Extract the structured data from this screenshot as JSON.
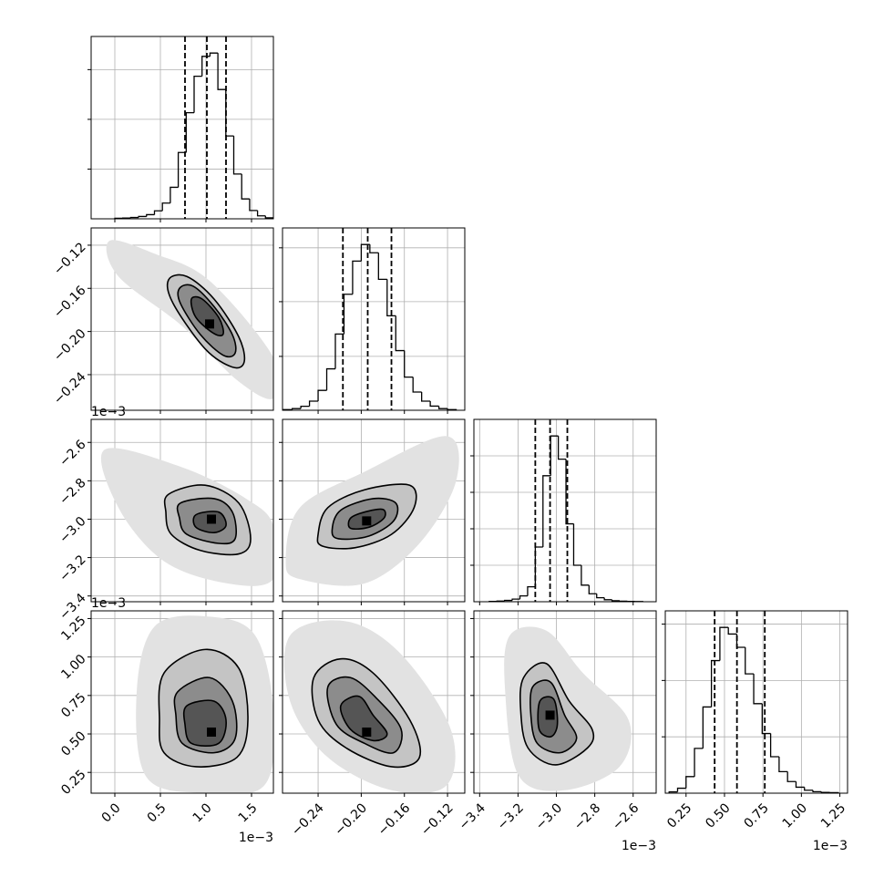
{
  "chart_data": {
    "type": "corner",
    "grid": true,
    "line_color": "#000000",
    "grid_color": "#b0b0b0",
    "contour_fills": [
      "#e2e2e2",
      "#c4c4c4",
      "#8c8c8c",
      "#555555"
    ],
    "parameters": [
      {
        "lim": [
          -0.26,
          1.74
        ],
        "ticks": [
          {
            "value": 0.0,
            "label": "0.0"
          },
          {
            "value": 0.5,
            "label": "0.5"
          },
          {
            "value": 1.0,
            "label": "1.0"
          },
          {
            "value": 1.5,
            "label": "1.5"
          }
        ],
        "offset_label": "1e−3",
        "bins": [
          0,
          0.087,
          0.174,
          0.261,
          0.348,
          0.435,
          0.522,
          0.609,
          0.696,
          0.783,
          0.87,
          0.957,
          1.044,
          1.131,
          1.218,
          1.305,
          1.392,
          1.479,
          1.566,
          1.653,
          1.74
        ],
        "counts": [
          3,
          5,
          8,
          14,
          25,
          48,
          95,
          190,
          400,
          640,
          860,
          980,
          1000,
          780,
          500,
          270,
          120,
          50,
          18,
          6
        ],
        "quantiles": [
          0.77,
          1.01,
          1.22
        ],
        "hist_ylim": [
          0,
          1100
        ],
        "hist_yticks": [
          300,
          600,
          900
        ]
      },
      {
        "lim": [
          -0.273,
          -0.104
        ],
        "ticks": [
          {
            "value": -0.24,
            "label": "−0.24"
          },
          {
            "value": -0.2,
            "label": "−0.20"
          },
          {
            "value": -0.16,
            "label": "−0.16"
          },
          {
            "value": -0.12,
            "label": "−0.12"
          }
        ],
        "bins": [
          -0.272,
          -0.264,
          -0.256,
          -0.248,
          -0.24,
          -0.232,
          -0.224,
          -0.216,
          -0.208,
          -0.2,
          -0.192,
          -0.184,
          -0.176,
          -0.168,
          -0.16,
          -0.152,
          -0.144,
          -0.136,
          -0.128,
          -0.12,
          -0.112
        ],
        "counts": [
          4,
          10,
          24,
          55,
          120,
          250,
          460,
          700,
          900,
          1000,
          950,
          790,
          570,
          360,
          200,
          110,
          55,
          25,
          10,
          4
        ],
        "quantiles": [
          -0.217,
          -0.194,
          -0.172
        ],
        "hist_ylim": [
          0,
          1100
        ],
        "hist_yticks": [
          325,
          655,
          980
        ]
      },
      {
        "lim": [
          -3.43,
          -2.48
        ],
        "ticks": [
          {
            "value": -3.4,
            "label": "−3.4"
          },
          {
            "value": -3.2,
            "label": "−3.2"
          },
          {
            "value": -3.0,
            "label": "−3.0"
          },
          {
            "value": -2.8,
            "label": "−2.8"
          },
          {
            "value": -2.6,
            "label": "−2.6"
          }
        ],
        "offset_label": "1e−3",
        "bins": [
          -3.35,
          -3.31,
          -3.27,
          -3.23,
          -3.19,
          -3.15,
          -3.11,
          -3.07,
          -3.03,
          -2.99,
          -2.95,
          -2.91,
          -2.87,
          -2.83,
          -2.79,
          -2.75,
          -2.71,
          -2.67,
          -2.63,
          -2.59,
          -2.55
        ],
        "counts": [
          2,
          4,
          8,
          16,
          35,
          90,
          330,
          760,
          1000,
          860,
          470,
          220,
          100,
          48,
          24,
          12,
          6,
          3,
          2,
          1
        ],
        "quantiles": [
          -3.11,
          -3.033,
          -2.943
        ],
        "hist_ylim": [
          0,
          1100
        ],
        "hist_yticks": [
          220,
          440,
          660,
          880
        ]
      },
      {
        "lim": [
          0.115,
          1.3
        ],
        "ticks": [
          0.25,
          {
            "value": 0.5,
            "label": "0.50"
          },
          0.75,
          {
            "value": 1.0,
            "label": "1.00"
          },
          1.25
        ],
        "offset_label": "1e−3",
        "bins": [
          0.14,
          0.195,
          0.25,
          0.305,
          0.36,
          0.415,
          0.47,
          0.525,
          0.58,
          0.635,
          0.69,
          0.745,
          0.8,
          0.855,
          0.91,
          0.965,
          1.02,
          1.075,
          1.13,
          1.185,
          1.24
        ],
        "counts": [
          8,
          30,
          100,
          270,
          520,
          800,
          1000,
          960,
          880,
          720,
          540,
          360,
          220,
          130,
          70,
          36,
          18,
          9,
          5,
          3
        ],
        "quantiles": [
          0.436,
          0.581,
          0.762
        ],
        "hist_ylim": [
          0,
          1100
        ],
        "hist_yticks": [
          340,
          680,
          1020
        ]
      }
    ],
    "pairs": [
      {
        "contours": [
          {
            "x": [
              -0.06,
              0.44,
              1.04,
              1.74,
              1.74,
              1.34,
              0.74,
              0.04
            ],
            "y": [
              -0.116,
              -0.128,
              -0.153,
              -0.224,
              -0.262,
              -0.245,
              -0.195,
              -0.149
            ]
          },
          {
            "x": [
              0.59,
              0.79,
              1.09,
              1.36,
              1.42,
              1.29,
              0.99,
              0.64
            ],
            "y": [
              -0.152,
              -0.149,
              -0.17,
              -0.205,
              -0.228,
              -0.233,
              -0.216,
              -0.174
            ]
          },
          {
            "x": [
              0.71,
              0.86,
              1.09,
              1.29,
              1.32,
              1.19,
              0.94,
              0.72
            ],
            "y": [
              -0.16,
              -0.158,
              -0.177,
              -0.203,
              -0.22,
              -0.222,
              -0.203,
              -0.174
            ]
          },
          {
            "x": [
              0.84,
              0.96,
              1.14,
              1.19,
              1.09,
              0.89
            ],
            "y": [
              -0.17,
              -0.17,
              -0.187,
              -0.202,
              -0.202,
              -0.187
            ]
          }
        ],
        "peak": {
          "x": 1.04,
          "y": -0.193
        }
      },
      {
        "contours": [
          {
            "x": [
              -0.11,
              0.74,
              1.44,
              1.74,
              1.74,
              1.24,
              0.54,
              0.04
            ],
            "y": [
              -2.637,
              -2.73,
              -2.893,
              -3.033,
              -3.312,
              -3.335,
              -3.219,
              -2.94
            ]
          },
          {
            "x": [
              0.59,
              0.99,
              1.36,
              1.49,
              1.36,
              0.94,
              0.62,
              0.56
            ],
            "y": [
              -2.87,
              -2.823,
              -2.916,
              -3.102,
              -3.181,
              -3.163,
              -3.079,
              -2.963
            ]
          },
          {
            "x": [
              0.72,
              1.09,
              1.29,
              1.32,
              1.14,
              0.79,
              0.71
            ],
            "y": [
              -2.916,
              -2.893,
              -2.963,
              -3.102,
              -3.126,
              -3.079,
              -2.995
            ]
          },
          {
            "x": [
              0.89,
              1.14,
              1.22,
              1.09,
              0.89
            ],
            "y": [
              -2.977,
              -2.963,
              -3.033,
              -3.07,
              -3.042
            ]
          }
        ],
        "peak": {
          "x": 1.06,
          "y": -3.0
        }
      },
      {
        "contours": [
          {
            "x": [
              -0.27,
              -0.257,
              -0.197,
              -0.121,
              -0.112,
              -0.146,
              -0.197,
              -0.257
            ],
            "y": [
              -3.219,
              -2.94,
              -2.753,
              -2.567,
              -2.8,
              -3.126,
              -3.335,
              -3.312
            ]
          },
          {
            "x": [
              -0.24,
              -0.231,
              -0.197,
              -0.155,
              -0.151,
              -0.172,
              -0.206,
              -0.236
            ],
            "y": [
              -3.079,
              -2.94,
              -2.847,
              -2.823,
              -2.94,
              -3.079,
              -3.149,
              -3.14
            ]
          },
          {
            "x": [
              -0.227,
              -0.219,
              -0.189,
              -0.168,
              -0.17,
              -0.193,
              -0.221
            ],
            "y": [
              -3.056,
              -2.953,
              -2.893,
              -2.916,
              -3.009,
              -3.088,
              -3.102
            ]
          },
          {
            "x": [
              -0.21,
              -0.197,
              -0.18,
              -0.179,
              -0.193,
              -0.21
            ],
            "y": [
              -2.995,
              -2.963,
              -2.949,
              -2.995,
              -3.042,
              -3.047
            ]
          }
        ],
        "peak": {
          "x": -0.195,
          "y": -3.009
        }
      },
      {
        "contours": [
          {
            "x": [
              0.44,
              1.04,
              1.54,
              1.74,
              1.64,
              0.94,
              0.34,
              0.24
            ],
            "y": [
              1.201,
              1.262,
              1.14,
              0.652,
              0.165,
              0.116,
              0.226,
              0.774
            ]
          },
          {
            "x": [
              0.54,
              0.99,
              1.36,
              1.46,
              1.34,
              0.89,
              0.54,
              0.49
            ],
            "y": [
              0.896,
              1.049,
              0.927,
              0.591,
              0.348,
              0.287,
              0.378,
              0.591
            ]
          },
          {
            "x": [
              0.69,
              1.04,
              1.29,
              1.32,
              1.09,
              0.74,
              0.67
            ],
            "y": [
              0.774,
              0.866,
              0.713,
              0.47,
              0.378,
              0.439,
              0.622
            ]
          },
          {
            "x": [
              0.79,
              1.09,
              1.22,
              1.14,
              0.84,
              0.77
            ],
            "y": [
              0.683,
              0.713,
              0.591,
              0.439,
              0.439,
              0.561
            ]
          }
        ],
        "peak": {
          "x": 1.06,
          "y": 0.512
        }
      },
      {
        "contours": [
          {
            "x": [
              -0.266,
              -0.214,
              -0.163,
              -0.117,
              -0.121,
              -0.172,
              -0.231,
              -0.266
            ],
            "y": [
              1.14,
              1.232,
              1.018,
              0.53,
              0.165,
              0.134,
              0.348,
              0.713
            ]
          },
          {
            "x": [
              -0.244,
              -0.219,
              -0.189,
              -0.155,
              -0.146,
              -0.172,
              -0.214,
              -0.24
            ],
            "y": [
              0.866,
              0.988,
              0.896,
              0.591,
              0.348,
              0.287,
              0.409,
              0.591
            ]
          },
          {
            "x": [
              -0.231,
              -0.21,
              -0.185,
              -0.163,
              -0.17,
              -0.197,
              -0.223
            ],
            "y": [
              0.805,
              0.866,
              0.726,
              0.53,
              0.378,
              0.439,
              0.561
            ]
          },
          {
            "x": [
              -0.219,
              -0.202,
              -0.189,
              -0.176,
              -0.189,
              -0.21
            ],
            "y": [
              0.683,
              0.744,
              0.622,
              0.5,
              0.457,
              0.53
            ]
          }
        ],
        "peak": {
          "x": -0.195,
          "y": 0.512
        }
      },
      {
        "contours": [
          {
            "x": [
              -3.243,
              -3.052,
              -2.862,
              -2.624,
              -2.671,
              -2.957,
              -3.195,
              -3.267
            ],
            "y": [
              1.14,
              1.171,
              0.896,
              0.591,
              0.287,
              0.134,
              0.226,
              0.774
            ]
          },
          {
            "x": [
              -3.171,
              -3.052,
              -2.933,
              -2.814,
              -2.838,
              -3.005,
              -3.148,
              -3.186
            ],
            "y": [
              0.866,
              0.957,
              0.713,
              0.53,
              0.409,
              0.299,
              0.409,
              0.652
            ]
          },
          {
            "x": [
              -3.124,
              -3.029,
              -2.957,
              -2.895,
              -2.981,
              -3.1,
              -3.133
            ],
            "y": [
              0.805,
              0.835,
              0.622,
              0.47,
              0.378,
              0.439,
              0.622
            ]
          },
          {
            "x": [
              -3.086,
              -3.014,
              -2.995,
              -3.029,
              -3.09
            ],
            "y": [
              0.713,
              0.726,
              0.561,
              0.482,
              0.53
            ]
          }
        ],
        "peak": {
          "x": -3.033,
          "y": 0.622
        }
      }
    ]
  }
}
